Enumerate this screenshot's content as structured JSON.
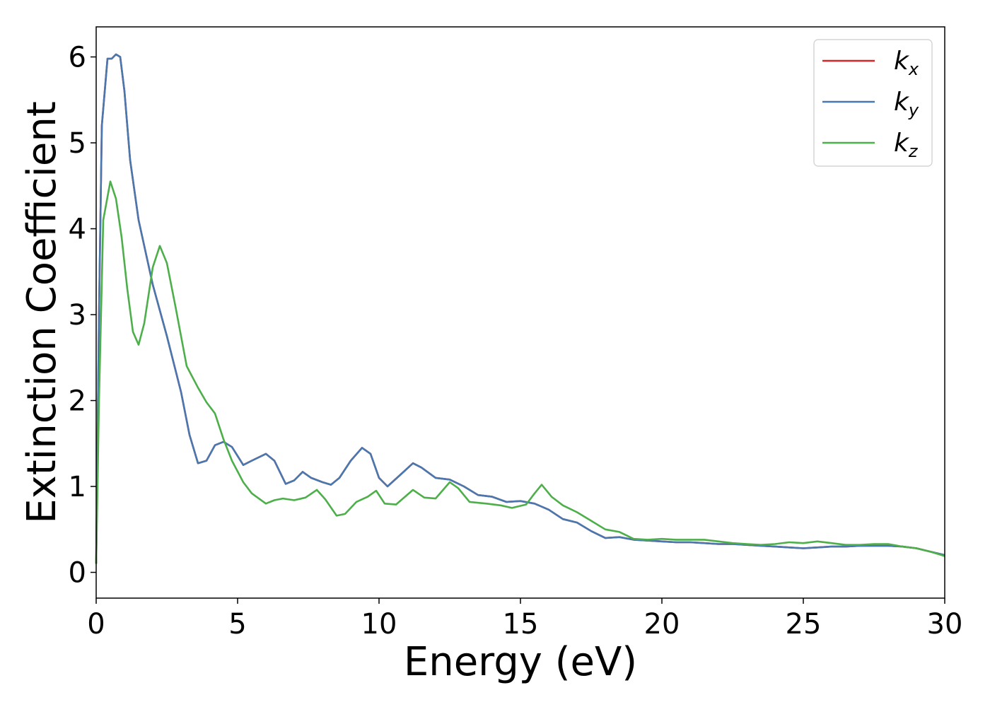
{
  "chart_data": {
    "type": "line",
    "xlabel": "Energy (eV)",
    "ylabel": "Extinction Coefficient",
    "xlim": [
      0,
      30
    ],
    "ylim": [
      -0.3,
      6.35
    ],
    "xticks": [
      0,
      5,
      10,
      15,
      20,
      25,
      30
    ],
    "xtick_labels": [
      "0",
      "5",
      "10",
      "15",
      "20",
      "25",
      "30"
    ],
    "yticks": [
      0,
      1,
      2,
      3,
      4,
      5,
      6
    ],
    "ytick_labels": [
      "0",
      "1",
      "2",
      "3",
      "4",
      "5",
      "6"
    ],
    "grid": false,
    "legend_position": "top-right",
    "series": [
      {
        "name": "k",
        "subscript": "x",
        "color": "#d62728",
        "points": [
          [
            0,
            0.1
          ],
          [
            0.1,
            3.0
          ],
          [
            0.2,
            5.2
          ],
          [
            0.4,
            5.98
          ],
          [
            0.55,
            5.98
          ],
          [
            0.7,
            6.03
          ],
          [
            0.85,
            6.0
          ],
          [
            1.0,
            5.6
          ],
          [
            1.2,
            4.8
          ],
          [
            1.5,
            4.1
          ],
          [
            2.0,
            3.35
          ],
          [
            2.5,
            2.75
          ],
          [
            3.0,
            2.1
          ],
          [
            3.3,
            1.6
          ],
          [
            3.6,
            1.27
          ],
          [
            3.9,
            1.3
          ],
          [
            4.2,
            1.48
          ],
          [
            4.5,
            1.52
          ],
          [
            4.8,
            1.46
          ],
          [
            5.2,
            1.25
          ],
          [
            5.5,
            1.3
          ],
          [
            6.0,
            1.38
          ],
          [
            6.3,
            1.3
          ],
          [
            6.7,
            1.03
          ],
          [
            7.0,
            1.07
          ],
          [
            7.3,
            1.17
          ],
          [
            7.6,
            1.1
          ],
          [
            8.0,
            1.05
          ],
          [
            8.3,
            1.02
          ],
          [
            8.6,
            1.1
          ],
          [
            9.0,
            1.3
          ],
          [
            9.4,
            1.45
          ],
          [
            9.7,
            1.38
          ],
          [
            10.0,
            1.1
          ],
          [
            10.3,
            1.0
          ],
          [
            10.7,
            1.12
          ],
          [
            11.2,
            1.27
          ],
          [
            11.5,
            1.22
          ],
          [
            12.0,
            1.1
          ],
          [
            12.5,
            1.08
          ],
          [
            13.0,
            1.0
          ],
          [
            13.5,
            0.9
          ],
          [
            14.0,
            0.88
          ],
          [
            14.5,
            0.82
          ],
          [
            15.0,
            0.83
          ],
          [
            15.5,
            0.8
          ],
          [
            16.0,
            0.73
          ],
          [
            16.5,
            0.62
          ],
          [
            17.0,
            0.58
          ],
          [
            17.5,
            0.48
          ],
          [
            18.0,
            0.4
          ],
          [
            18.5,
            0.41
          ],
          [
            19.0,
            0.38
          ],
          [
            19.5,
            0.37
          ],
          [
            20.0,
            0.36
          ],
          [
            20.5,
            0.35
          ],
          [
            21.0,
            0.35
          ],
          [
            21.5,
            0.34
          ],
          [
            22.0,
            0.33
          ],
          [
            22.5,
            0.33
          ],
          [
            23.0,
            0.32
          ],
          [
            23.5,
            0.31
          ],
          [
            24.0,
            0.3
          ],
          [
            24.5,
            0.29
          ],
          [
            25.0,
            0.28
          ],
          [
            25.5,
            0.29
          ],
          [
            26.0,
            0.3
          ],
          [
            26.5,
            0.3
          ],
          [
            27.0,
            0.31
          ],
          [
            27.5,
            0.31
          ],
          [
            28.0,
            0.31
          ],
          [
            28.5,
            0.3
          ],
          [
            29.0,
            0.28
          ],
          [
            29.5,
            0.24
          ],
          [
            30.0,
            0.2
          ]
        ]
      },
      {
        "name": "k",
        "subscript": "y",
        "color": "#4878b0",
        "points": [
          [
            0,
            0.1
          ],
          [
            0.1,
            3.0
          ],
          [
            0.2,
            5.2
          ],
          [
            0.4,
            5.98
          ],
          [
            0.55,
            5.98
          ],
          [
            0.7,
            6.03
          ],
          [
            0.85,
            6.0
          ],
          [
            1.0,
            5.6
          ],
          [
            1.2,
            4.8
          ],
          [
            1.5,
            4.1
          ],
          [
            2.0,
            3.35
          ],
          [
            2.5,
            2.75
          ],
          [
            3.0,
            2.1
          ],
          [
            3.3,
            1.6
          ],
          [
            3.6,
            1.27
          ],
          [
            3.9,
            1.3
          ],
          [
            4.2,
            1.48
          ],
          [
            4.5,
            1.52
          ],
          [
            4.8,
            1.46
          ],
          [
            5.2,
            1.25
          ],
          [
            5.5,
            1.3
          ],
          [
            6.0,
            1.38
          ],
          [
            6.3,
            1.3
          ],
          [
            6.7,
            1.03
          ],
          [
            7.0,
            1.07
          ],
          [
            7.3,
            1.17
          ],
          [
            7.6,
            1.1
          ],
          [
            8.0,
            1.05
          ],
          [
            8.3,
            1.02
          ],
          [
            8.6,
            1.1
          ],
          [
            9.0,
            1.3
          ],
          [
            9.4,
            1.45
          ],
          [
            9.7,
            1.38
          ],
          [
            10.0,
            1.1
          ],
          [
            10.3,
            1.0
          ],
          [
            10.7,
            1.12
          ],
          [
            11.2,
            1.27
          ],
          [
            11.5,
            1.22
          ],
          [
            12.0,
            1.1
          ],
          [
            12.5,
            1.08
          ],
          [
            13.0,
            1.0
          ],
          [
            13.5,
            0.9
          ],
          [
            14.0,
            0.88
          ],
          [
            14.5,
            0.82
          ],
          [
            15.0,
            0.83
          ],
          [
            15.5,
            0.8
          ],
          [
            16.0,
            0.73
          ],
          [
            16.5,
            0.62
          ],
          [
            17.0,
            0.58
          ],
          [
            17.5,
            0.48
          ],
          [
            18.0,
            0.4
          ],
          [
            18.5,
            0.41
          ],
          [
            19.0,
            0.38
          ],
          [
            19.5,
            0.37
          ],
          [
            20.0,
            0.36
          ],
          [
            20.5,
            0.35
          ],
          [
            21.0,
            0.35
          ],
          [
            21.5,
            0.34
          ],
          [
            22.0,
            0.33
          ],
          [
            22.5,
            0.33
          ],
          [
            23.0,
            0.32
          ],
          [
            23.5,
            0.31
          ],
          [
            24.0,
            0.3
          ],
          [
            24.5,
            0.29
          ],
          [
            25.0,
            0.28
          ],
          [
            25.5,
            0.29
          ],
          [
            26.0,
            0.3
          ],
          [
            26.5,
            0.3
          ],
          [
            27.0,
            0.31
          ],
          [
            27.5,
            0.31
          ],
          [
            28.0,
            0.31
          ],
          [
            28.5,
            0.3
          ],
          [
            29.0,
            0.28
          ],
          [
            29.5,
            0.24
          ],
          [
            30.0,
            0.2
          ]
        ]
      },
      {
        "name": "k",
        "subscript": "z",
        "color": "#4daf4a",
        "points": [
          [
            0,
            0.1
          ],
          [
            0.1,
            2.0
          ],
          [
            0.25,
            4.1
          ],
          [
            0.5,
            4.55
          ],
          [
            0.7,
            4.35
          ],
          [
            0.9,
            3.9
          ],
          [
            1.1,
            3.3
          ],
          [
            1.3,
            2.8
          ],
          [
            1.5,
            2.65
          ],
          [
            1.7,
            2.9
          ],
          [
            2.0,
            3.55
          ],
          [
            2.25,
            3.8
          ],
          [
            2.5,
            3.6
          ],
          [
            2.8,
            3.1
          ],
          [
            3.2,
            2.4
          ],
          [
            3.6,
            2.15
          ],
          [
            3.9,
            1.98
          ],
          [
            4.2,
            1.85
          ],
          [
            4.5,
            1.55
          ],
          [
            4.8,
            1.3
          ],
          [
            5.2,
            1.05
          ],
          [
            5.5,
            0.92
          ],
          [
            6.0,
            0.8
          ],
          [
            6.3,
            0.84
          ],
          [
            6.6,
            0.86
          ],
          [
            7.0,
            0.84
          ],
          [
            7.4,
            0.87
          ],
          [
            7.8,
            0.96
          ],
          [
            8.1,
            0.85
          ],
          [
            8.5,
            0.66
          ],
          [
            8.8,
            0.68
          ],
          [
            9.2,
            0.82
          ],
          [
            9.6,
            0.88
          ],
          [
            9.9,
            0.95
          ],
          [
            10.2,
            0.8
          ],
          [
            10.6,
            0.79
          ],
          [
            11.2,
            0.96
          ],
          [
            11.6,
            0.87
          ],
          [
            12.0,
            0.86
          ],
          [
            12.5,
            1.05
          ],
          [
            12.8,
            0.98
          ],
          [
            13.2,
            0.82
          ],
          [
            13.8,
            0.8
          ],
          [
            14.3,
            0.78
          ],
          [
            14.7,
            0.75
          ],
          [
            15.2,
            0.79
          ],
          [
            15.5,
            0.92
          ],
          [
            15.75,
            1.02
          ],
          [
            16.1,
            0.88
          ],
          [
            16.5,
            0.78
          ],
          [
            17.0,
            0.7
          ],
          [
            17.5,
            0.6
          ],
          [
            18.0,
            0.5
          ],
          [
            18.5,
            0.47
          ],
          [
            19.0,
            0.39
          ],
          [
            19.5,
            0.38
          ],
          [
            20.0,
            0.39
          ],
          [
            20.5,
            0.38
          ],
          [
            21.0,
            0.38
          ],
          [
            21.5,
            0.38
          ],
          [
            22.0,
            0.36
          ],
          [
            22.5,
            0.34
          ],
          [
            23.0,
            0.33
          ],
          [
            23.5,
            0.32
          ],
          [
            24.0,
            0.33
          ],
          [
            24.5,
            0.35
          ],
          [
            25.0,
            0.34
          ],
          [
            25.5,
            0.36
          ],
          [
            26.0,
            0.34
          ],
          [
            26.5,
            0.32
          ],
          [
            27.0,
            0.32
          ],
          [
            27.5,
            0.33
          ],
          [
            28.0,
            0.33
          ],
          [
            28.5,
            0.3
          ],
          [
            29.0,
            0.28
          ],
          [
            29.5,
            0.24
          ],
          [
            30.0,
            0.19
          ]
        ]
      }
    ]
  }
}
